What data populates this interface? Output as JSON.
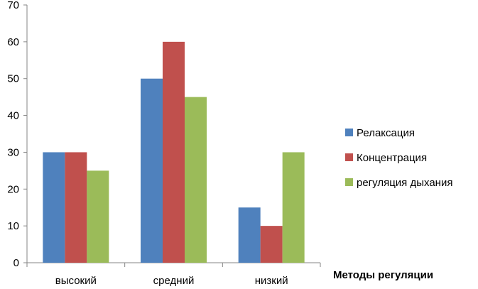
{
  "chart_data": {
    "type": "bar",
    "title": "",
    "xlabel": "Методы регуляции",
    "ylabel": "",
    "categories": [
      "высокий",
      "средний",
      "низкий"
    ],
    "series": [
      {
        "name": "Релаксация",
        "values": [
          30,
          50,
          15
        ],
        "color": "#4F81BD"
      },
      {
        "name": "Концентрация",
        "values": [
          30,
          60,
          10
        ],
        "color": "#C0504D"
      },
      {
        "name": "регуляция дыхания",
        "values": [
          25,
          45,
          30
        ],
        "color": "#9BBB59"
      }
    ],
    "ylim": [
      0,
      70
    ],
    "yticks": [
      0,
      10,
      20,
      30,
      40,
      50,
      60,
      70
    ],
    "grid": false,
    "legend_position": "right"
  }
}
